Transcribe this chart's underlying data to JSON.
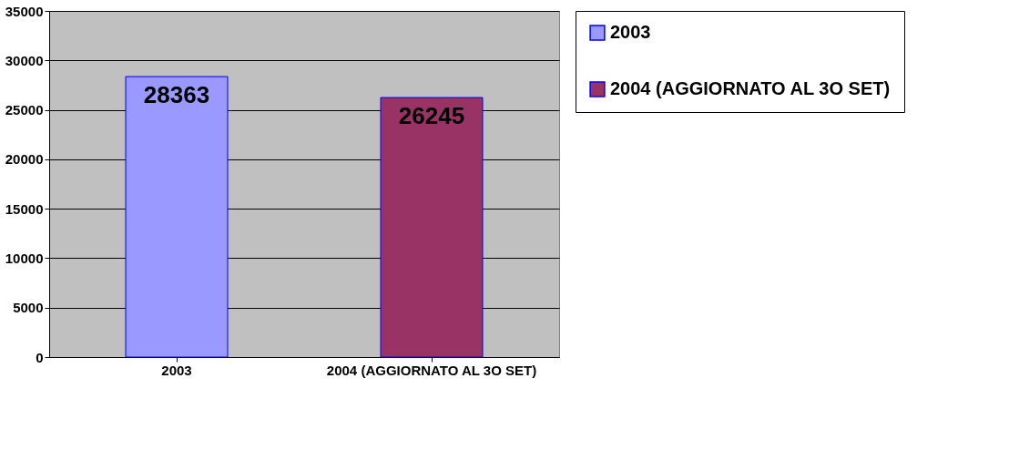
{
  "chart_data": {
    "type": "bar",
    "categories": [
      "2003",
      "2004 (AGGIORNATO AL 3O SET)"
    ],
    "series": [
      {
        "name": "2003",
        "color": "#9999ff",
        "values": [
          28363,
          null
        ]
      },
      {
        "name": "2004 (AGGIORNATO AL 3O SET)",
        "color": "#993366",
        "values": [
          null,
          26245
        ]
      }
    ],
    "ylim": [
      0,
      35000
    ],
    "yticks": [
      0,
      5000,
      10000,
      15000,
      20000,
      25000,
      30000,
      35000
    ],
    "grid": "y",
    "data_labels": true,
    "legend": "right"
  }
}
